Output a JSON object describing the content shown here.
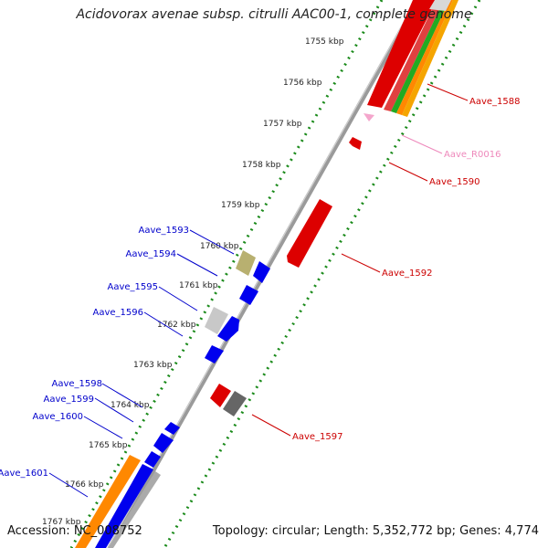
{
  "title": "Acidovorax avenae subsp. citrulli AAC00-1, complete genome",
  "footer": {
    "accession": "Accession: NC_008752",
    "summary": "Topology: circular; Length: 5,352,772 bp; Genes: 4,774"
  },
  "colors": {
    "backbone": "#8a8a8a",
    "tick": "#1a8a1a",
    "forward_label": "#cc0000",
    "reverse_label": "#0000cc",
    "rna_label": "#ee88bb"
  },
  "ticks": [
    "1755 kbp",
    "1756 kbp",
    "1757 kbp",
    "1758 kbp",
    "1759 kbp",
    "1760 kbp",
    "1761 kbp",
    "1762 kbp",
    "1763 kbp",
    "1764 kbp",
    "1765 kbp",
    "1766 kbp",
    "1767 kbp"
  ],
  "genes": [
    {
      "label": "Aave_1588",
      "color": "#dd0000"
    },
    {
      "label": "Aave_R0016",
      "color": "#f4a6cc"
    },
    {
      "label": "Aave_1590",
      "color": "#dd0000"
    },
    {
      "label": "Aave_1592",
      "color": "#dd0000"
    },
    {
      "label": "Aave_1593",
      "color": "#b8b070"
    },
    {
      "label": "Aave_1594",
      "color": "#0000ee"
    },
    {
      "label": "Aave_1595",
      "color": "#c8c8c8"
    },
    {
      "label": "Aave_1596",
      "color": "#0000ee"
    },
    {
      "label": "Aave_1597",
      "color": "#dd0000"
    },
    {
      "label": "Aave_1598",
      "color": "#0000ee"
    },
    {
      "label": "Aave_1599",
      "color": "#0000ee"
    },
    {
      "label": "Aave_1600",
      "color": "#0000ee"
    },
    {
      "label": "Aave_1601",
      "color": "#ff8800"
    }
  ]
}
